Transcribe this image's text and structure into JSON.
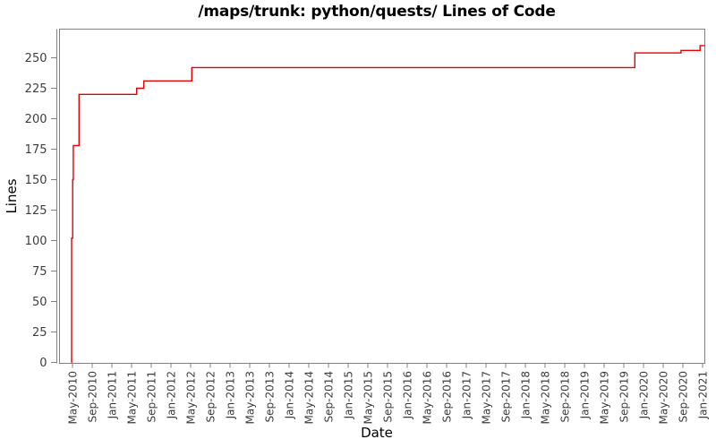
{
  "window": {
    "title": "/maps/trunk: python/quests/ Lines of Code"
  },
  "colors": {
    "line": "#e60000",
    "axis": "#808080",
    "tick_text": "#3d3d3d",
    "label_text": "#000000",
    "background": "#ffffff"
  },
  "chart_data": {
    "type": "line",
    "line_style": "step-after",
    "title": "/maps/trunk: python/quests/ Lines of Code",
    "xlabel": "Date",
    "ylabel": "Lines",
    "grid": false,
    "legend": false,
    "ylim": [
      0,
      273
    ],
    "y_ticks": [
      0,
      25,
      50,
      75,
      100,
      125,
      150,
      175,
      200,
      225,
      250
    ],
    "x_tick_labels": [
      "May-2010",
      "Sep-2010",
      "Jan-2011",
      "May-2011",
      "Sep-2011",
      "Jan-2012",
      "May-2012",
      "Sep-2012",
      "Jan-2013",
      "May-2013",
      "Sep-2013",
      "Jan-2014",
      "May-2014",
      "Sep-2014",
      "Jan-2015",
      "May-2015",
      "Sep-2015",
      "Jan-2016",
      "May-2016",
      "Sep-2016",
      "Jan-2017",
      "May-2017",
      "Sep-2017",
      "Jan-2018",
      "May-2018",
      "Sep-2018",
      "Jan-2019",
      "May-2019",
      "Sep-2019",
      "Jan-2020",
      "May-2020",
      "Sep-2020",
      "Jan-2021"
    ],
    "series": [
      {
        "name": "Lines of Code",
        "color": "#e60000",
        "points": [
          [
            "2010-04-25",
            0
          ],
          [
            "2010-04-26",
            102
          ],
          [
            "2010-05-02",
            150
          ],
          [
            "2010-05-06",
            178
          ],
          [
            "2010-06-11",
            220
          ],
          [
            "2011-06-02",
            225
          ],
          [
            "2011-07-16",
            231
          ],
          [
            "2012-05-08",
            242
          ],
          [
            "2019-11-08",
            254
          ],
          [
            "2020-08-20",
            256
          ],
          [
            "2020-12-16",
            260
          ],
          [
            "2021-01-15",
            260
          ]
        ]
      }
    ]
  }
}
